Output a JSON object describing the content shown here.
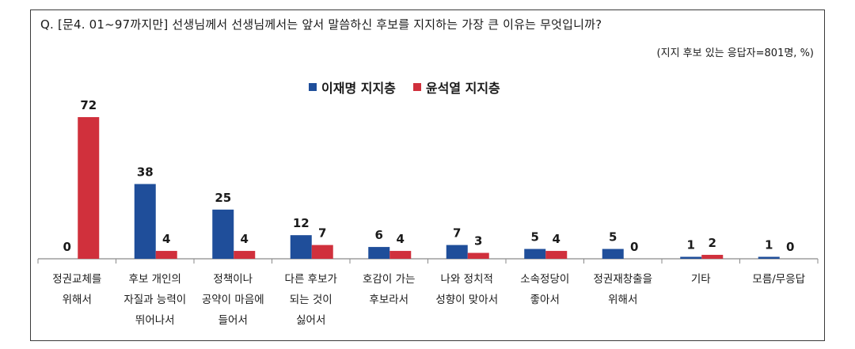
{
  "question": "Q. [문4. 01~97까지만] 선생님께서 선생님께서는 앞서 말씀하신 후보를 지지하는 가장 큰 이유는 무엇입니까?",
  "note": "(지지 후보 있는 응답자=801명, %)",
  "colors": {
    "series1": "#1f4e9a",
    "series2": "#d0303c",
    "axis": "#8a8a8a"
  },
  "chart_data": {
    "type": "bar",
    "categories": [
      [
        "정권교체를",
        "위해서"
      ],
      [
        "후보 개인의",
        "자질과 능력이",
        "뛰어나서"
      ],
      [
        "정책이나",
        "공약이 마음에",
        "들어서"
      ],
      [
        "다른 후보가",
        "되는 것이",
        "싫어서"
      ],
      [
        "호감이 가는",
        "후보라서"
      ],
      [
        "나와 정치적",
        "성향이 맞아서"
      ],
      [
        "소속정당이",
        "좋아서"
      ],
      [
        "정권재창출을",
        "위해서"
      ],
      [
        "기타"
      ],
      [
        "모름/무응답"
      ]
    ],
    "series": [
      {
        "name": "이재명 지지층",
        "values": [
          0,
          38,
          25,
          12,
          6,
          7,
          5,
          5,
          1,
          1
        ]
      },
      {
        "name": "윤석열 지지층",
        "values": [
          72,
          4,
          4,
          7,
          4,
          3,
          4,
          0,
          2,
          0
        ]
      }
    ],
    "ylim": [
      0,
      72
    ],
    "legend": "top-center"
  }
}
